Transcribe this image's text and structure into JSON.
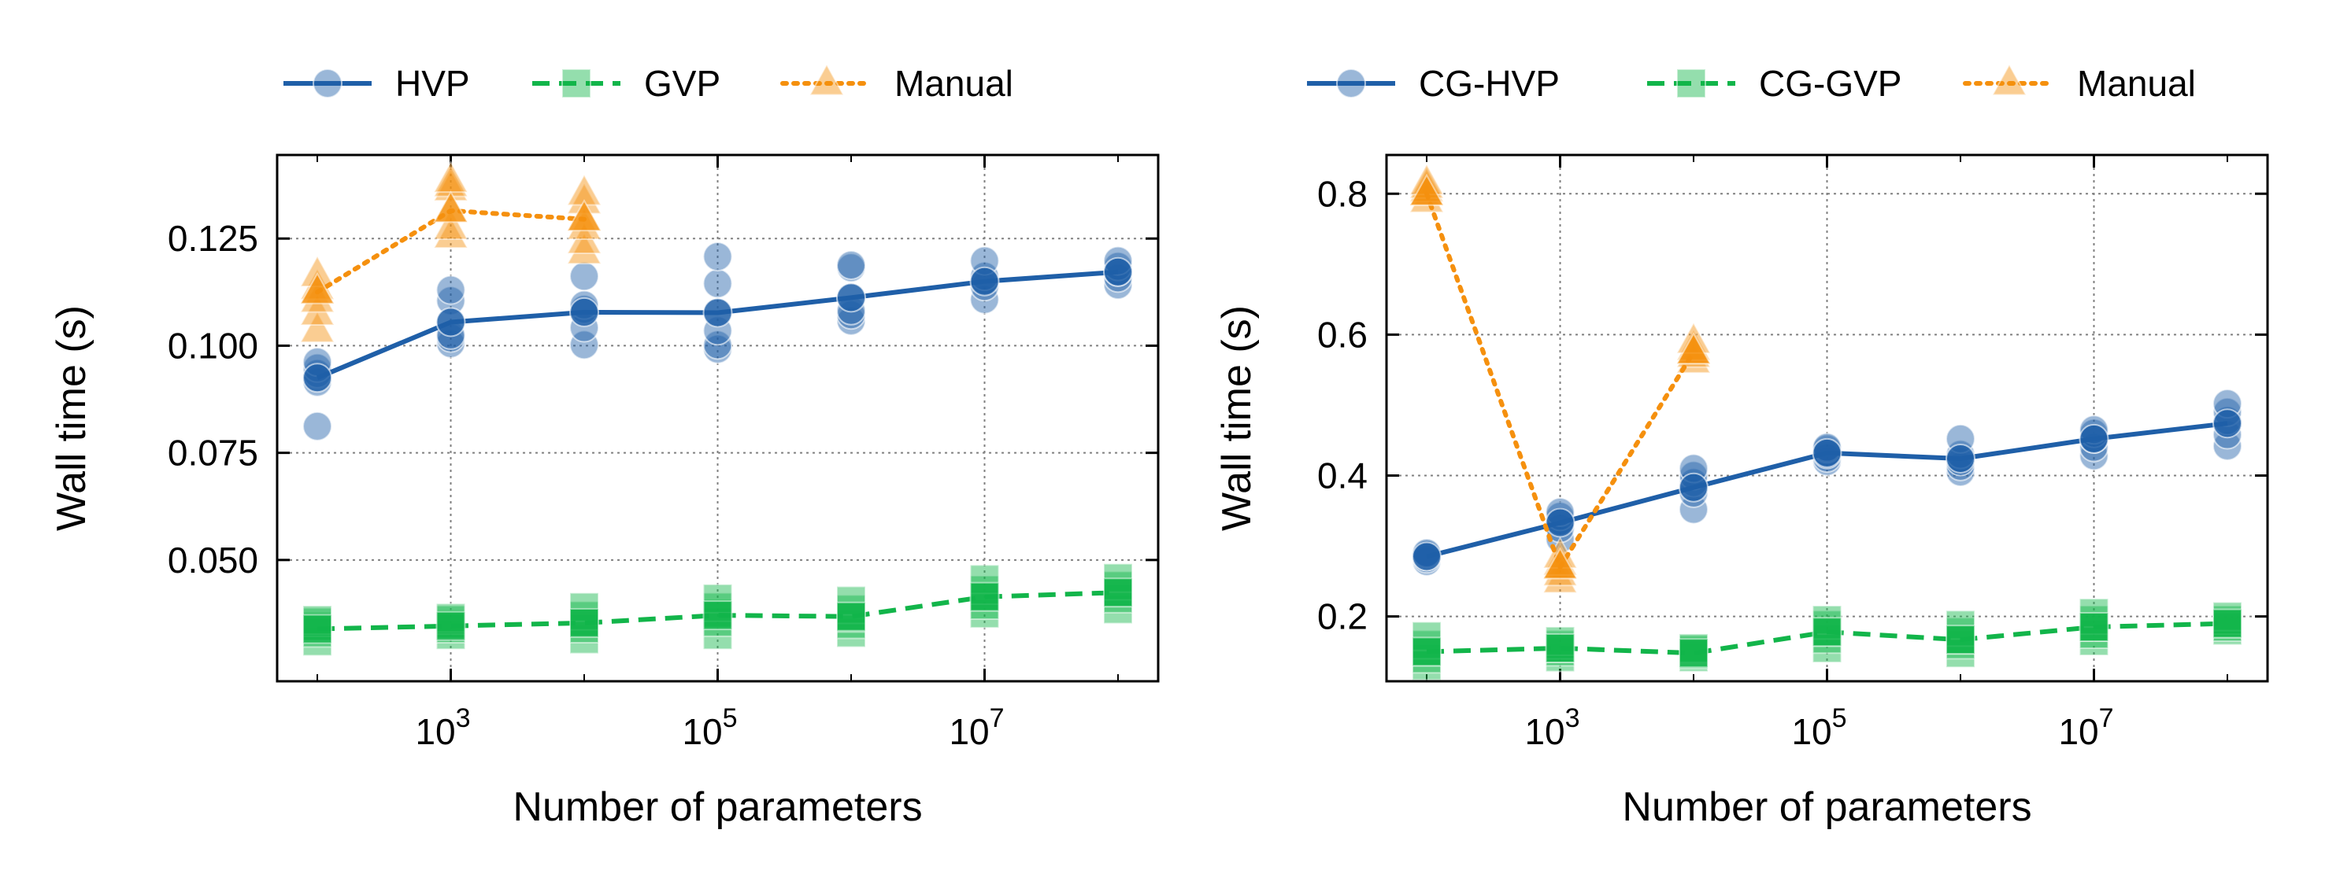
{
  "colors": {
    "hvp": "#1f5fa8",
    "gvp": "#12b54a",
    "manual": "#f5900e",
    "grid": "#808080",
    "axis": "#000000"
  },
  "chart_data": [
    {
      "type": "line",
      "xscale": "log",
      "xlabel": "Number of parameters",
      "ylabel": "Wall time (s)",
      "xlim": [
        50,
        200000000
      ],
      "ylim": [
        0.0217,
        0.1445
      ],
      "xticks": [
        {
          "value": 1000,
          "base": "10",
          "exp": "3"
        },
        {
          "value": 100000,
          "base": "10",
          "exp": "5"
        },
        {
          "value": 10000000,
          "base": "10",
          "exp": "7"
        }
      ],
      "yticks": [
        {
          "value": 0.05,
          "label": "0.050"
        },
        {
          "value": 0.075,
          "label": "0.075"
        },
        {
          "value": 0.1,
          "label": "0.100"
        },
        {
          "value": 0.125,
          "label": "0.125"
        }
      ],
      "grid": true,
      "legend_position": "top",
      "series": [
        {
          "name": "HVP",
          "color_key": "hvp",
          "marker": "circle",
          "line": "solid",
          "x": [
            100,
            1000,
            10000,
            100000,
            1000000,
            10000000,
            100000000
          ],
          "mean": [
            0.0925,
            0.1055,
            0.1078,
            0.1077,
            0.1112,
            0.115,
            0.1172
          ],
          "points": [
            [
              0.0812,
              0.0915,
              0.0935,
              0.0948,
              0.0962
            ],
            [
              0.1005,
              0.1018,
              0.1025,
              0.1105,
              0.113
            ],
            [
              0.1002,
              0.1042,
              0.1085,
              0.1095,
              0.1162
            ],
            [
              0.0992,
              0.1002,
              0.1035,
              0.1145,
              0.1208
            ],
            [
              0.1058,
              0.1072,
              0.1082,
              0.1182,
              0.1188
            ],
            [
              0.1108,
              0.1138,
              0.1152,
              0.1162,
              0.1198
            ],
            [
              0.1142,
              0.1158,
              0.1172,
              0.1185,
              0.1198
            ]
          ]
        },
        {
          "name": "GVP",
          "color_key": "gvp",
          "marker": "square",
          "line": "dashed",
          "x": [
            100,
            1000,
            10000,
            100000,
            1000000,
            10000000,
            100000000
          ],
          "mean": [
            0.0339,
            0.0346,
            0.0353,
            0.0371,
            0.0368,
            0.0414,
            0.0424
          ],
          "points": [
            [
              0.031,
              0.033,
              0.0345,
              0.0355,
              0.036
            ],
            [
              0.0325,
              0.034,
              0.035,
              0.036,
              0.0365
            ],
            [
              0.0315,
              0.034,
              0.0355,
              0.037,
              0.039
            ],
            [
              0.0325,
              0.0355,
              0.0375,
              0.039,
              0.041
            ],
            [
              0.033,
              0.035,
              0.0365,
              0.0385,
              0.0405
            ],
            [
              0.0375,
              0.0395,
              0.0415,
              0.043,
              0.0455
            ],
            [
              0.0385,
              0.041,
              0.0425,
              0.044,
              0.0458
            ]
          ]
        },
        {
          "name": "Manual",
          "color_key": "manual",
          "marker": "triangle",
          "line": "dotted",
          "x": [
            100,
            1000,
            10000
          ],
          "mean": [
            0.1125,
            0.1315,
            0.1295
          ],
          "points": [
            [
              0.1035,
              0.1075,
              0.1105,
              0.1135,
              0.1165
            ],
            [
              0.1255,
              0.1275,
              0.1365,
              0.1375,
              0.1385
            ],
            [
              0.1218,
              0.1242,
              0.1275,
              0.1335,
              0.1355
            ]
          ]
        }
      ]
    },
    {
      "type": "line",
      "xscale": "log",
      "xlabel": "Number of parameters",
      "ylabel": "Wall time (s)",
      "xlim": [
        50,
        200000000
      ],
      "ylim": [
        0.108,
        0.855
      ],
      "xticks": [
        {
          "value": 1000,
          "base": "10",
          "exp": "3"
        },
        {
          "value": 100000,
          "base": "10",
          "exp": "5"
        },
        {
          "value": 10000000,
          "base": "10",
          "exp": "7"
        }
      ],
      "yticks": [
        {
          "value": 0.2,
          "label": "0.2"
        },
        {
          "value": 0.4,
          "label": "0.4"
        },
        {
          "value": 0.6,
          "label": "0.6"
        },
        {
          "value": 0.8,
          "label": "0.8"
        }
      ],
      "grid": true,
      "legend_position": "top",
      "series": [
        {
          "name": "CG-HVP",
          "color_key": "hvp",
          "marker": "circle",
          "line": "solid",
          "x": [
            100,
            1000,
            10000,
            100000,
            1000000,
            10000000,
            100000000
          ],
          "mean": [
            0.285,
            0.333,
            0.383,
            0.432,
            0.424,
            0.452,
            0.474
          ],
          "points": [
            [
              0.278,
              0.282,
              0.285,
              0.288,
              0.29
            ],
            [
              0.31,
              0.325,
              0.335,
              0.342,
              0.348
            ],
            [
              0.352,
              0.375,
              0.39,
              0.4,
              0.41
            ],
            [
              0.42,
              0.425,
              0.43,
              0.438,
              0.44
            ],
            [
              0.405,
              0.413,
              0.42,
              0.43,
              0.452
            ],
            [
              0.428,
              0.44,
              0.452,
              0.46,
              0.465
            ],
            [
              0.442,
              0.458,
              0.478,
              0.49,
              0.502
            ]
          ]
        },
        {
          "name": "CG-GVP",
          "color_key": "gvp",
          "marker": "square",
          "line": "dashed",
          "x": [
            100,
            1000,
            10000,
            100000,
            1000000,
            10000000,
            100000000
          ],
          "mean": [
            0.15,
            0.155,
            0.148,
            0.178,
            0.167,
            0.185,
            0.19
          ],
          "points": [
            [
              0.13,
              0.14,
              0.15,
              0.16,
              0.172
            ],
            [
              0.142,
              0.15,
              0.155,
              0.16,
              0.165
            ],
            [
              0.142,
              0.146,
              0.15,
              0.153,
              0.155
            ],
            [
              0.155,
              0.168,
              0.178,
              0.188,
              0.195
            ],
            [
              0.148,
              0.16,
              0.167,
              0.178,
              0.188
            ],
            [
              0.165,
              0.175,
              0.185,
              0.195,
              0.205
            ],
            [
              0.18,
              0.185,
              0.19,
              0.195,
              0.2
            ]
          ]
        },
        {
          "name": "Manual",
          "color_key": "manual",
          "marker": "triangle",
          "line": "dotted",
          "x": [
            100,
            1000,
            10000
          ],
          "mean": [
            0.8,
            0.27,
            0.575
          ],
          "points": [
            [
              0.79,
              0.8,
              0.805,
              0.81,
              0.815
            ],
            [
              0.25,
              0.26,
              0.27,
              0.275,
              0.285
            ],
            [
              0.562,
              0.57,
              0.575,
              0.58,
              0.59
            ]
          ]
        }
      ]
    }
  ]
}
